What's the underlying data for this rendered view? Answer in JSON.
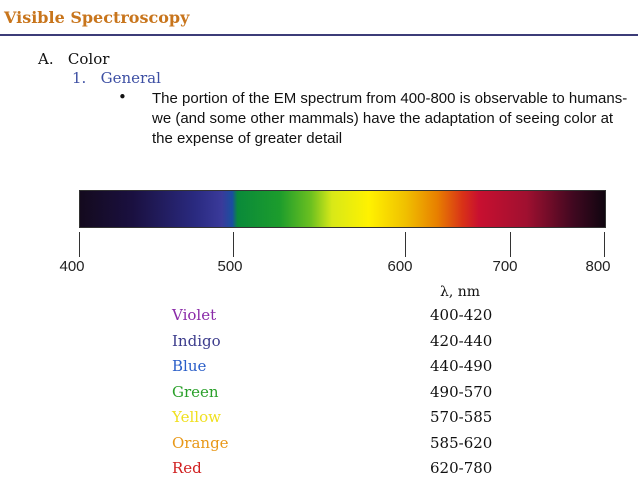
{
  "slide": {
    "title": "Visible Spectroscopy",
    "outline_a": "A.   Color",
    "outline_1": "1.   General",
    "bullet_symbol": "•",
    "bullet_text": "The portion of the EM spectrum from 400-800 is observable to humans- we (and some other mammals) have the adaptation of seeing color at the expense of greater detail"
  },
  "spectrum": {
    "ticks": [
      "400",
      "500",
      "600",
      "700",
      "800"
    ],
    "colors": {
      "title": "#c8751c",
      "rule": "#3c3c78"
    }
  },
  "table": {
    "header": "λ, nm",
    "rows": [
      {
        "name": "Violet",
        "range": "400-420",
        "color": "#8a2aa8"
      },
      {
        "name": "Indigo",
        "range": "420-440",
        "color": "#3c3c8c"
      },
      {
        "name": "Blue",
        "range": "440-490",
        "color": "#2a5ec8"
      },
      {
        "name": "Green",
        "range": "490-570",
        "color": "#2aa02a"
      },
      {
        "name": "Yellow",
        "range": "570-585",
        "color": "#f0e020"
      },
      {
        "name": "Orange",
        "range": "585-620",
        "color": "#e89818"
      },
      {
        "name": "Red",
        "range": "620-780",
        "color": "#d02020"
      }
    ]
  }
}
